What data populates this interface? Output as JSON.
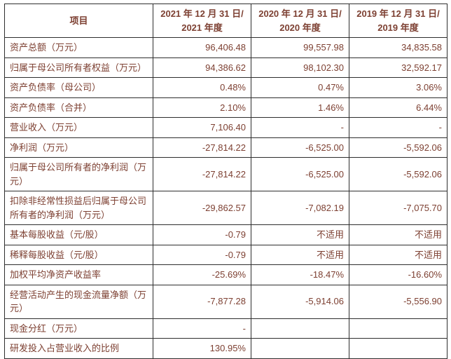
{
  "page": {
    "background": "#ffffff",
    "text_color": "#7d4032",
    "border_color": "#2e2e2e"
  },
  "table": {
    "columns": [
      "项目",
      "2021 年 12 月 31 日/\n2021 年度",
      "2020 年 12 月 31 日/\n2020 年度",
      "2019 年 12 月 31 日/\n2019 年度"
    ],
    "rows": [
      {
        "label": "资产总额（万元）",
        "y2021": "96,406.48",
        "y2020": "99,557.98",
        "y2019": "34,835.58"
      },
      {
        "label": "归属于母公司所有者权益（万元）",
        "y2021": "94,386.62",
        "y2020": "98,102.30",
        "y2019": "32,592.17"
      },
      {
        "label": "资产负债率（母公司）",
        "y2021": "0.48%",
        "y2020": "0.47%",
        "y2019": "3.06%"
      },
      {
        "label": "资产负债率（合并）",
        "y2021": "2.10%",
        "y2020": "1.46%",
        "y2019": "6.44%"
      },
      {
        "label": "营业收入（万元）",
        "y2021": "7,106.40",
        "y2020": "-",
        "y2019": "-"
      },
      {
        "label": "净利润（万元）",
        "y2021": "-27,814.22",
        "y2020": "-6,525.00",
        "y2019": "-5,592.06"
      },
      {
        "label": "归属于母公司所有者的净利润（万元）",
        "y2021": "-27,814.22",
        "y2020": "-6,525.00",
        "y2019": "-5,592.06"
      },
      {
        "label": "扣除非经常性损益后归属于母公司所有者的净利润（万元）",
        "y2021": "-29,862.57",
        "y2020": "-7,082.19",
        "y2019": "-7,075.70"
      },
      {
        "label": "基本每股收益（元/股）",
        "y2021": "-0.79",
        "y2020": "不适用",
        "y2019": "不适用"
      },
      {
        "label": "稀释每股收益（元/股）",
        "y2021": "-0.79",
        "y2020": "不适用",
        "y2019": "不适用"
      },
      {
        "label": "加权平均净资产收益率",
        "y2021": "-25.69%",
        "y2020": "-18.47%",
        "y2019": "-16.60%"
      },
      {
        "label": "经营活动产生的现金流量净额（万元）",
        "y2021": "-7,877.28",
        "y2020": "-5,914.06",
        "y2019": "-5,556.90"
      },
      {
        "label": "现金分红（万元）",
        "y2021": "-",
        "y2020": "",
        "y2019": ""
      },
      {
        "label": "研发投入占营业收入的比例",
        "y2021": "130.95%",
        "y2020": "",
        "y2019": ""
      }
    ]
  }
}
